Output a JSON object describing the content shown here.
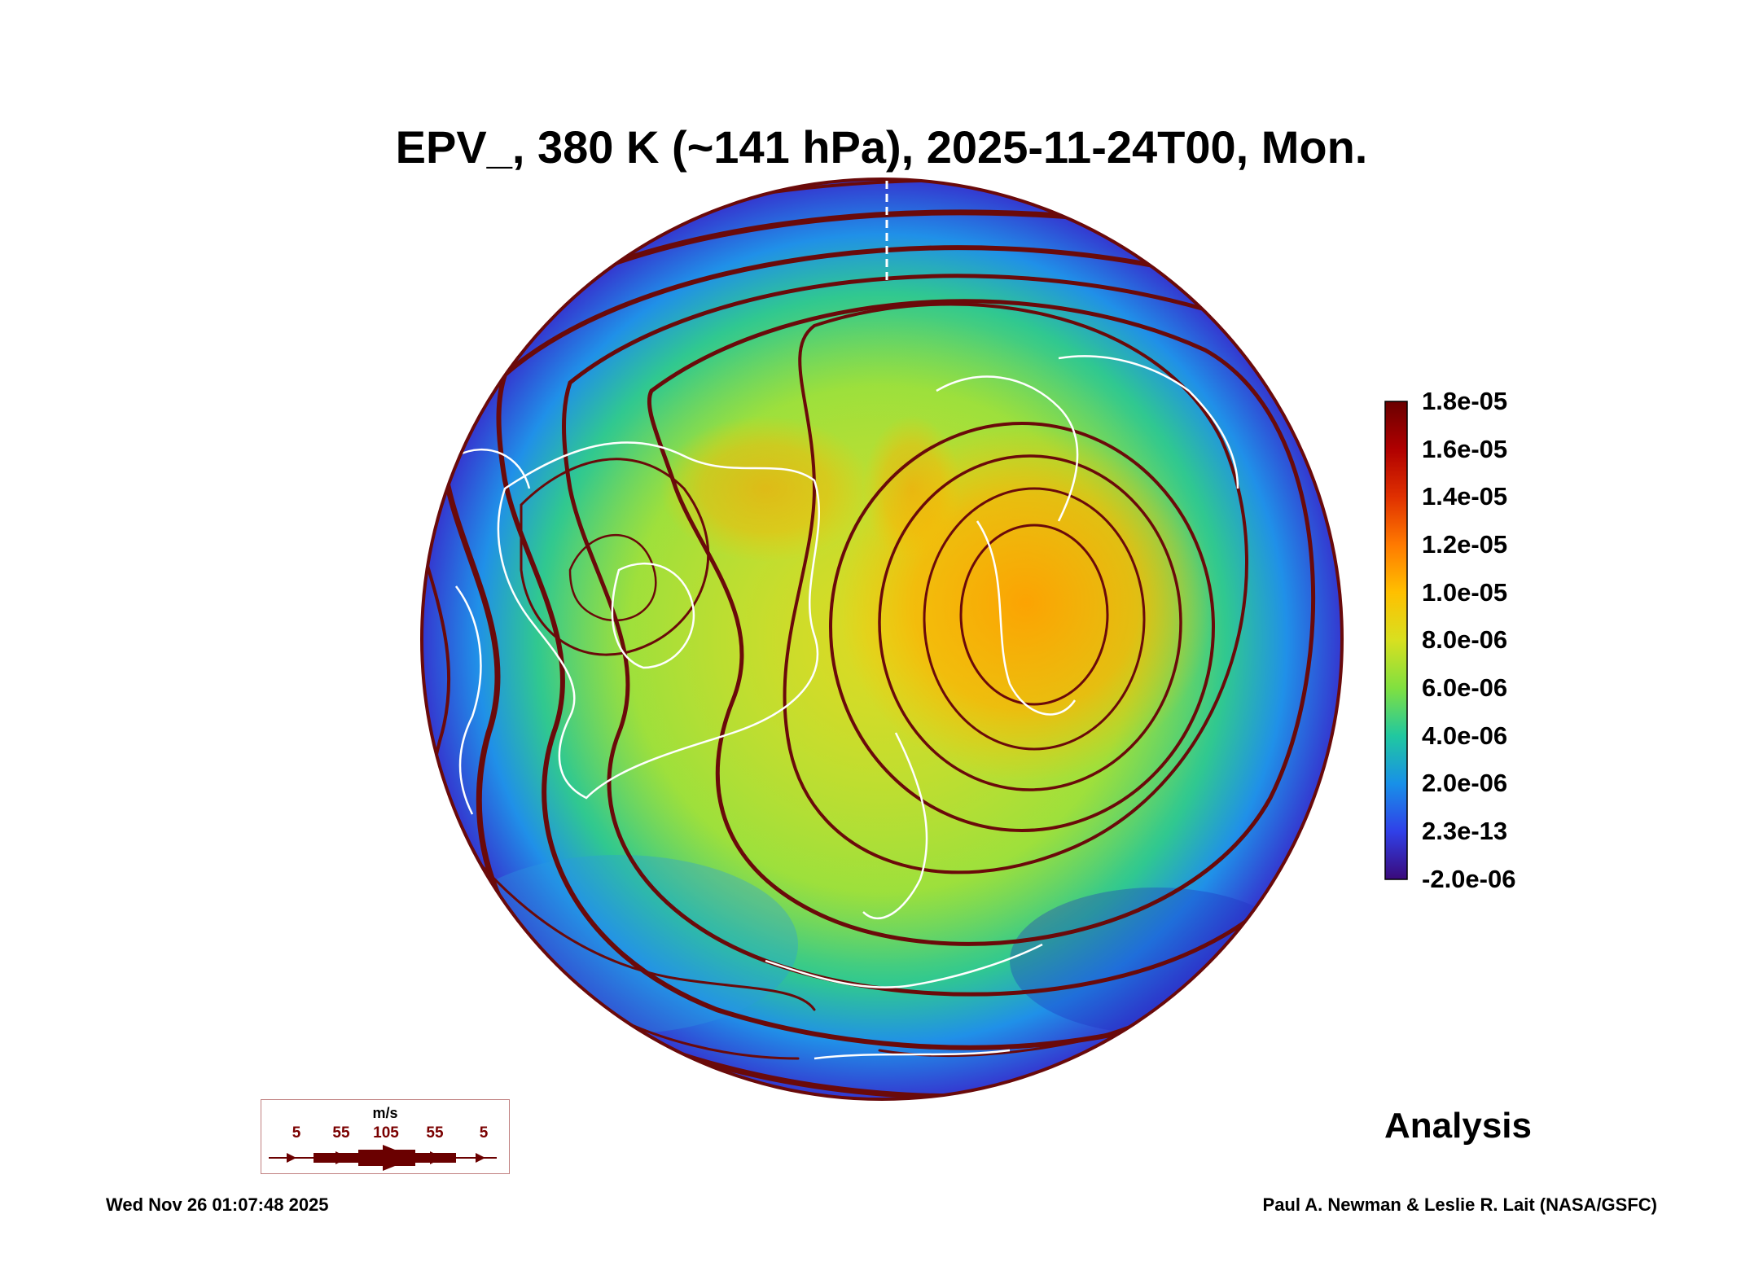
{
  "title": "EPV_, 380 K (~141 hPa), 2025-11-24T00, Mon.",
  "colorbar": {
    "labels": [
      "1.8e-05",
      "1.6e-05",
      "1.4e-05",
      "1.2e-05",
      "1.0e-05",
      "8.0e-06",
      "6.0e-06",
      "4.0e-06",
      "2.0e-06",
      "2.3e-13",
      "-2.0e-06"
    ],
    "colors": [
      "#6a0000",
      "#b00000",
      "#e03000",
      "#ff7a00",
      "#ffc000",
      "#d8e020",
      "#80e040",
      "#20c8a0",
      "#1890e8",
      "#3040e8",
      "#3a0a7a"
    ]
  },
  "legend": {
    "unit": "m/s",
    "values": [
      "5",
      "55",
      "105",
      "55",
      "5"
    ]
  },
  "analysis_label": "Analysis",
  "timestamp": "Wed Nov 26 01:07:48 2025",
  "credit": "Paul A. Newman & Leslie R. Lait (NASA/GSFC)",
  "chart_data": {
    "type": "polar-stereographic map",
    "variable": "EPV_",
    "level": "380 K (~141 hPa)",
    "valid_time": "2025-11-24T00",
    "color_scale_range": [
      "-2.0e-06",
      "1.8e-05"
    ],
    "overlay": "wind streamlines (m/s)"
  }
}
